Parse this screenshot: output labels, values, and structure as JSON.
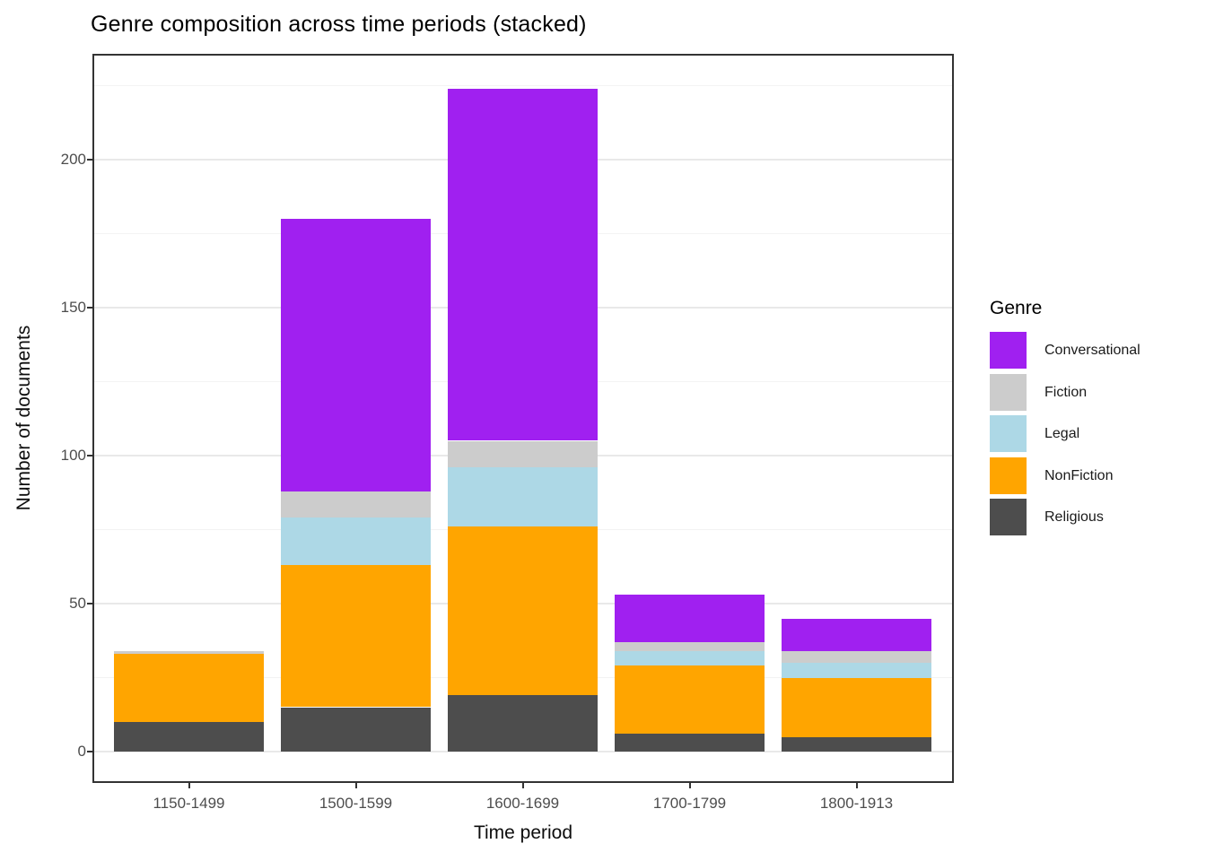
{
  "page": {
    "background": "#ffffff"
  },
  "chart_data": {
    "type": "bar",
    "stacked": true,
    "title": "Genre composition across time periods (stacked)",
    "xlabel": "Time period",
    "ylabel": "Number of documents",
    "categories": [
      "1150-1499",
      "1500-1599",
      "1600-1699",
      "1700-1799",
      "1800-1913"
    ],
    "series": [
      {
        "name": "Religious",
        "color": "#4d4d4d",
        "values": [
          10,
          15,
          19,
          6,
          5
        ]
      },
      {
        "name": "NonFiction",
        "color": "#ffa500",
        "values": [
          23,
          48,
          57,
          23,
          20
        ]
      },
      {
        "name": "Legal",
        "color": "#add8e6",
        "values": [
          0,
          16,
          20,
          5,
          5
        ]
      },
      {
        "name": "Fiction",
        "color": "#cccccc",
        "values": [
          1,
          9,
          9,
          3,
          4
        ]
      },
      {
        "name": "Conversational",
        "color": "#a020f0",
        "values": [
          0,
          92,
          119,
          16,
          11
        ]
      }
    ],
    "stack_totals": [
      34,
      180,
      224,
      53,
      45
    ],
    "y_axis": {
      "major_ticks": [
        0,
        50,
        100,
        150,
        200
      ],
      "minor_ticks": [
        25,
        75,
        125,
        175,
        225
      ],
      "range": [
        -11,
        235
      ]
    },
    "legend": {
      "title": "Genre",
      "position": "right",
      "entries": [
        {
          "label": "Conversational",
          "color": "#a020f0"
        },
        {
          "label": "Fiction",
          "color": "#cccccc"
        },
        {
          "label": "Legal",
          "color": "#add8e6"
        },
        {
          "label": "NonFiction",
          "color": "#ffa500"
        },
        {
          "label": "Religious",
          "color": "#4d4d4d"
        }
      ]
    },
    "grid": true,
    "panel_border": true,
    "theme": "bw"
  }
}
